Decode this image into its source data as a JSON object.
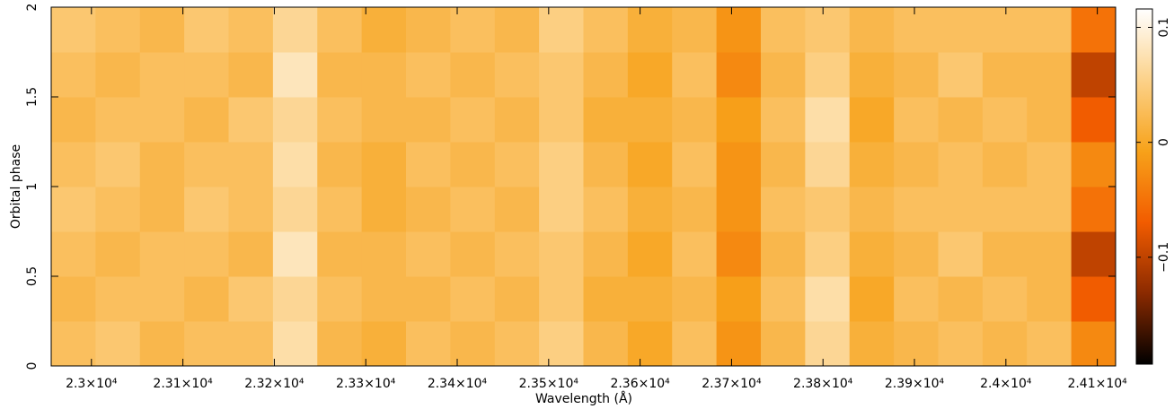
{
  "chart_data": {
    "type": "heatmap",
    "xlabel": "Wavelength (Å)",
    "ylabel": "Orbital phase",
    "xlim": [
      22956,
      24120
    ],
    "ylim": [
      0,
      2
    ],
    "xticks": [
      {
        "value": 23000,
        "label": "2.3×10⁴"
      },
      {
        "value": 23100,
        "label": "2.31×10⁴"
      },
      {
        "value": 23200,
        "label": "2.32×10⁴"
      },
      {
        "value": 23300,
        "label": "2.33×10⁴"
      },
      {
        "value": 23400,
        "label": "2.34×10⁴"
      },
      {
        "value": 23500,
        "label": "2.35×10⁴"
      },
      {
        "value": 23600,
        "label": "2.36×10⁴"
      },
      {
        "value": 23700,
        "label": "2.37×10⁴"
      },
      {
        "value": 23800,
        "label": "2.38×10⁴"
      },
      {
        "value": 23900,
        "label": "2.39×10⁴"
      },
      {
        "value": 24000,
        "label": "2.4×10⁴"
      },
      {
        "value": 24100,
        "label": "2.41×10⁴"
      }
    ],
    "yticks": [
      0,
      0.5,
      1,
      1.5,
      2
    ],
    "zlim": [
      -0.193,
      0.116
    ],
    "zticks": [
      {
        "value": -0.1,
        "label": "−0.1"
      },
      0,
      0.1
    ],
    "colormap": [
      "#000000",
      "#8b2a00",
      "#f25c00",
      "#f7a21a",
      "#fcd28a",
      "#ffffff"
    ],
    "z": [
      [
        0.03,
        0.04,
        0.02,
        0.03,
        0.03,
        0.07,
        0.02,
        0.01,
        0.03,
        0.02,
        0.03,
        0.05,
        0.02,
        0.0,
        0.03,
        -0.02,
        0.02,
        0.06,
        0.01,
        0.02,
        0.03,
        0.02,
        0.03,
        -0.03
      ],
      [
        0.02,
        0.03,
        0.03,
        0.02,
        0.04,
        0.06,
        0.03,
        0.02,
        0.02,
        0.03,
        0.02,
        0.04,
        0.01,
        0.01,
        0.02,
        -0.01,
        0.03,
        0.07,
        0.0,
        0.03,
        0.02,
        0.03,
        0.02,
        -0.07
      ],
      [
        0.03,
        0.02,
        0.03,
        0.03,
        0.02,
        0.08,
        0.02,
        0.02,
        0.03,
        0.02,
        0.03,
        0.04,
        0.02,
        0.0,
        0.03,
        -0.03,
        0.02,
        0.05,
        0.01,
        0.02,
        0.04,
        0.02,
        0.02,
        -0.1
      ],
      [
        0.04,
        0.03,
        0.02,
        0.04,
        0.03,
        0.06,
        0.03,
        0.01,
        0.02,
        0.03,
        0.02,
        0.05,
        0.03,
        0.01,
        0.02,
        -0.02,
        0.03,
        0.04,
        0.02,
        0.03,
        0.03,
        0.03,
        0.03,
        -0.05
      ],
      [
        0.03,
        0.04,
        0.02,
        0.03,
        0.03,
        0.07,
        0.02,
        0.01,
        0.03,
        0.02,
        0.03,
        0.05,
        0.02,
        0.0,
        0.03,
        -0.02,
        0.02,
        0.06,
        0.01,
        0.02,
        0.03,
        0.02,
        0.03,
        -0.03
      ],
      [
        0.02,
        0.03,
        0.03,
        0.02,
        0.04,
        0.06,
        0.03,
        0.02,
        0.02,
        0.03,
        0.02,
        0.04,
        0.01,
        0.01,
        0.02,
        -0.01,
        0.03,
        0.07,
        0.0,
        0.03,
        0.02,
        0.03,
        0.02,
        -0.07
      ],
      [
        0.03,
        0.02,
        0.03,
        0.03,
        0.02,
        0.08,
        0.02,
        0.02,
        0.03,
        0.02,
        0.03,
        0.04,
        0.02,
        0.0,
        0.03,
        -0.03,
        0.02,
        0.05,
        0.01,
        0.02,
        0.04,
        0.02,
        0.02,
        -0.1
      ],
      [
        0.04,
        0.03,
        0.02,
        0.04,
        0.03,
        0.06,
        0.03,
        0.01,
        0.02,
        0.03,
        0.02,
        0.05,
        0.03,
        0.01,
        0.02,
        -0.02,
        0.03,
        0.04,
        0.02,
        0.03,
        0.03,
        0.03,
        0.03,
        -0.05
      ]
    ]
  }
}
